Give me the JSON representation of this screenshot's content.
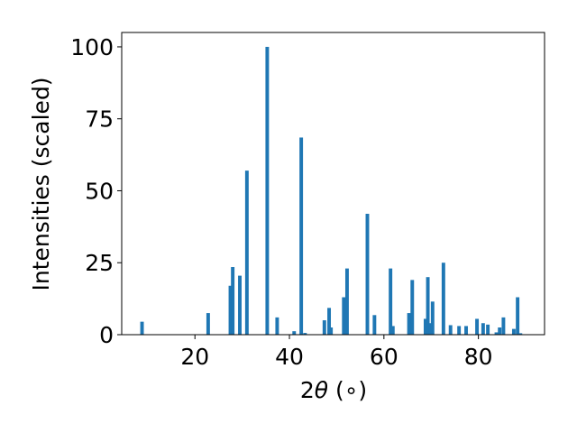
{
  "chart_data": {
    "type": "bar",
    "xlabel_prefix": "2",
    "xlabel_symbol": "θ",
    "xlabel_suffix": " (∘)",
    "ylabel": "Intensities (scaled)",
    "xlim": [
      4.5,
      94
    ],
    "ylim": [
      0,
      105
    ],
    "x_ticks": [
      20,
      40,
      60,
      80
    ],
    "y_ticks": [
      0,
      25,
      50,
      75,
      100
    ],
    "grid": false,
    "legend": "none",
    "bar_color": "#1f77b4",
    "bar_width": 0.75,
    "bars": [
      {
        "x": 8.8,
        "y": 4.5
      },
      {
        "x": 22.8,
        "y": 7.5
      },
      {
        "x": 27.5,
        "y": 17
      },
      {
        "x": 28.0,
        "y": 23.5
      },
      {
        "x": 29.5,
        "y": 20.5
      },
      {
        "x": 31.0,
        "y": 57
      },
      {
        "x": 35.3,
        "y": 100
      },
      {
        "x": 37.4,
        "y": 6
      },
      {
        "x": 41.0,
        "y": 1.2
      },
      {
        "x": 42.5,
        "y": 68.5
      },
      {
        "x": 43.3,
        "y": 0.6
      },
      {
        "x": 47.4,
        "y": 5
      },
      {
        "x": 48.4,
        "y": 9.3
      },
      {
        "x": 48.8,
        "y": 2.5
      },
      {
        "x": 51.5,
        "y": 13
      },
      {
        "x": 52.2,
        "y": 23
      },
      {
        "x": 56.5,
        "y": 42
      },
      {
        "x": 58.0,
        "y": 6.8
      },
      {
        "x": 61.4,
        "y": 23
      },
      {
        "x": 61.9,
        "y": 3
      },
      {
        "x": 65.3,
        "y": 7.5
      },
      {
        "x": 66.0,
        "y": 19
      },
      {
        "x": 68.8,
        "y": 5.5
      },
      {
        "x": 69.3,
        "y": 20
      },
      {
        "x": 69.8,
        "y": 4
      },
      {
        "x": 70.3,
        "y": 11.5
      },
      {
        "x": 72.6,
        "y": 25
      },
      {
        "x": 74.1,
        "y": 3.3
      },
      {
        "x": 75.9,
        "y": 3
      },
      {
        "x": 77.4,
        "y": 3
      },
      {
        "x": 79.7,
        "y": 5.5
      },
      {
        "x": 81.0,
        "y": 4
      },
      {
        "x": 82.0,
        "y": 3.5
      },
      {
        "x": 83.8,
        "y": 0.8
      },
      {
        "x": 84.5,
        "y": 2.5
      },
      {
        "x": 85.3,
        "y": 6
      },
      {
        "x": 87.5,
        "y": 2
      },
      {
        "x": 88.3,
        "y": 13
      },
      {
        "x": 88.9,
        "y": 0.5
      }
    ]
  }
}
